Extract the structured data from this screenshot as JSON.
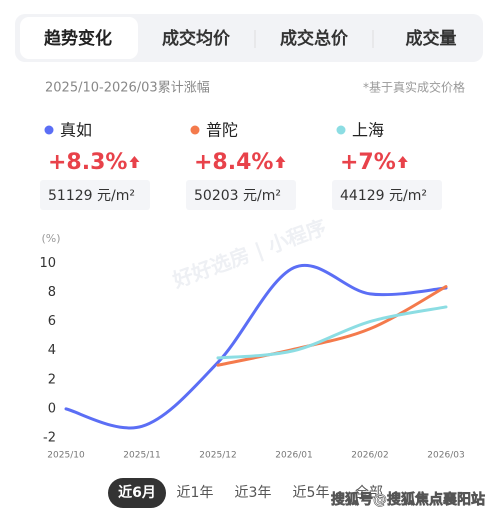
{
  "tabs": [
    "趋势变化",
    "成交均价",
    "成交总价",
    "成交量"
  ],
  "period_label": "2025/10-2026/03累计涨幅",
  "note": "*基于真实成交价格",
  "stats": [
    {
      "name": "真如",
      "change": "+8.3%",
      "price": "51129 元/m²"
    },
    {
      "name": "普陀",
      "change": "+8.4%",
      "price": "50203 元/m²"
    },
    {
      "name": "上海",
      "change": "+7%",
      "price": "44129 元/m²"
    }
  ],
  "chart_data": {
    "type": "line",
    "y_label": "(%)",
    "watermark": "好好选房 | 小程序",
    "x": [
      "2025/10",
      "2025/11",
      "2025/12",
      "2026/01",
      "2026/02",
      "2026/03"
    ],
    "ylim": [
      -2,
      10.5
    ],
    "yticks": [
      -2,
      0,
      2,
      4,
      6,
      8,
      10
    ],
    "series": [
      {
        "name": "真如",
        "color": "#5b6ef5",
        "values": [
          0,
          -1.2,
          3.2,
          9.7,
          7.9,
          8.3
        ]
      },
      {
        "name": "普陀",
        "color": "#f47a4c",
        "values": [
          null,
          null,
          3,
          4.1,
          5.5,
          8.4
        ]
      },
      {
        "name": "上海",
        "color": "#8cdde3",
        "values": [
          null,
          null,
          3.5,
          4.0,
          6.0,
          7.0
        ]
      }
    ]
  },
  "periods": [
    "近6月",
    "近1年",
    "近3年",
    "近5年",
    "全部"
  ],
  "footer_watermark": "搜狐号@搜狐焦点襄阳站"
}
